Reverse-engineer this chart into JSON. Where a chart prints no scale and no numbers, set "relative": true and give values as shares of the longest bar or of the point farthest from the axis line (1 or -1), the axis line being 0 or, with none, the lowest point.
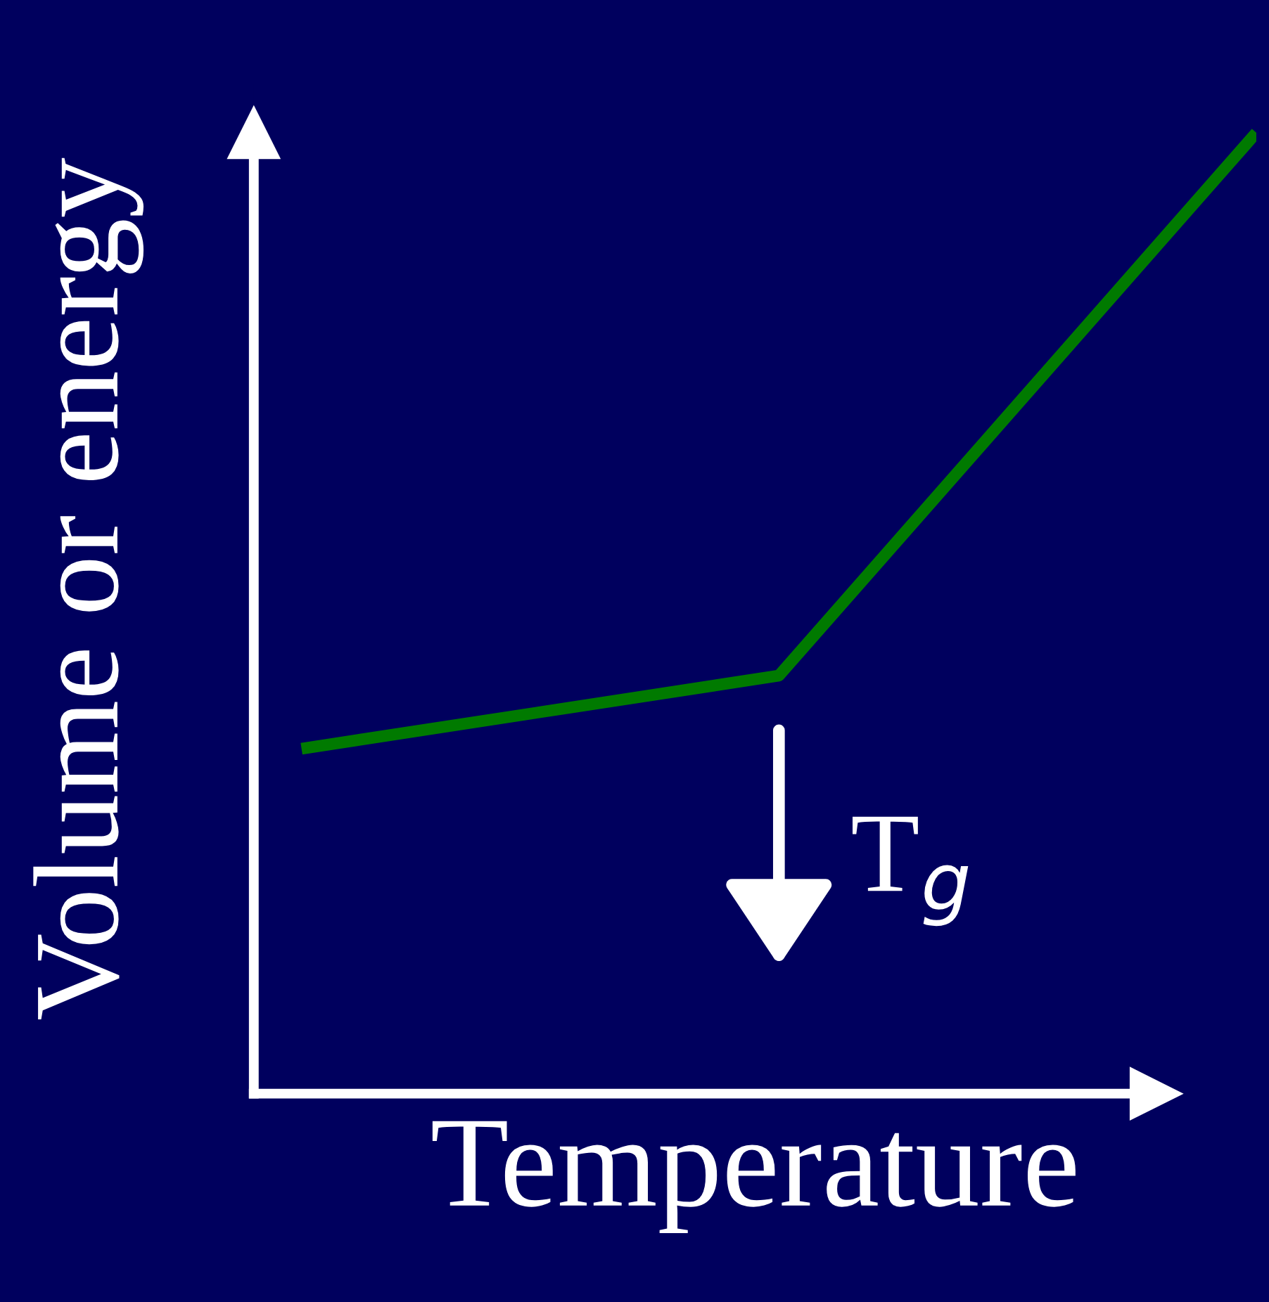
{
  "chart_data": {
    "type": "line",
    "relative": true,
    "xlabel": "Temperature",
    "ylabel": "Volume or energy",
    "categories": [
      null,
      null,
      null
    ],
    "series": [
      {
        "color": "#007a00",
        "values": [
          0.359,
          0.435,
          1.0
        ]
      }
    ],
    "annotations": [
      "T$_{g}$"
    ],
    "line_style": "solid"
  }
}
